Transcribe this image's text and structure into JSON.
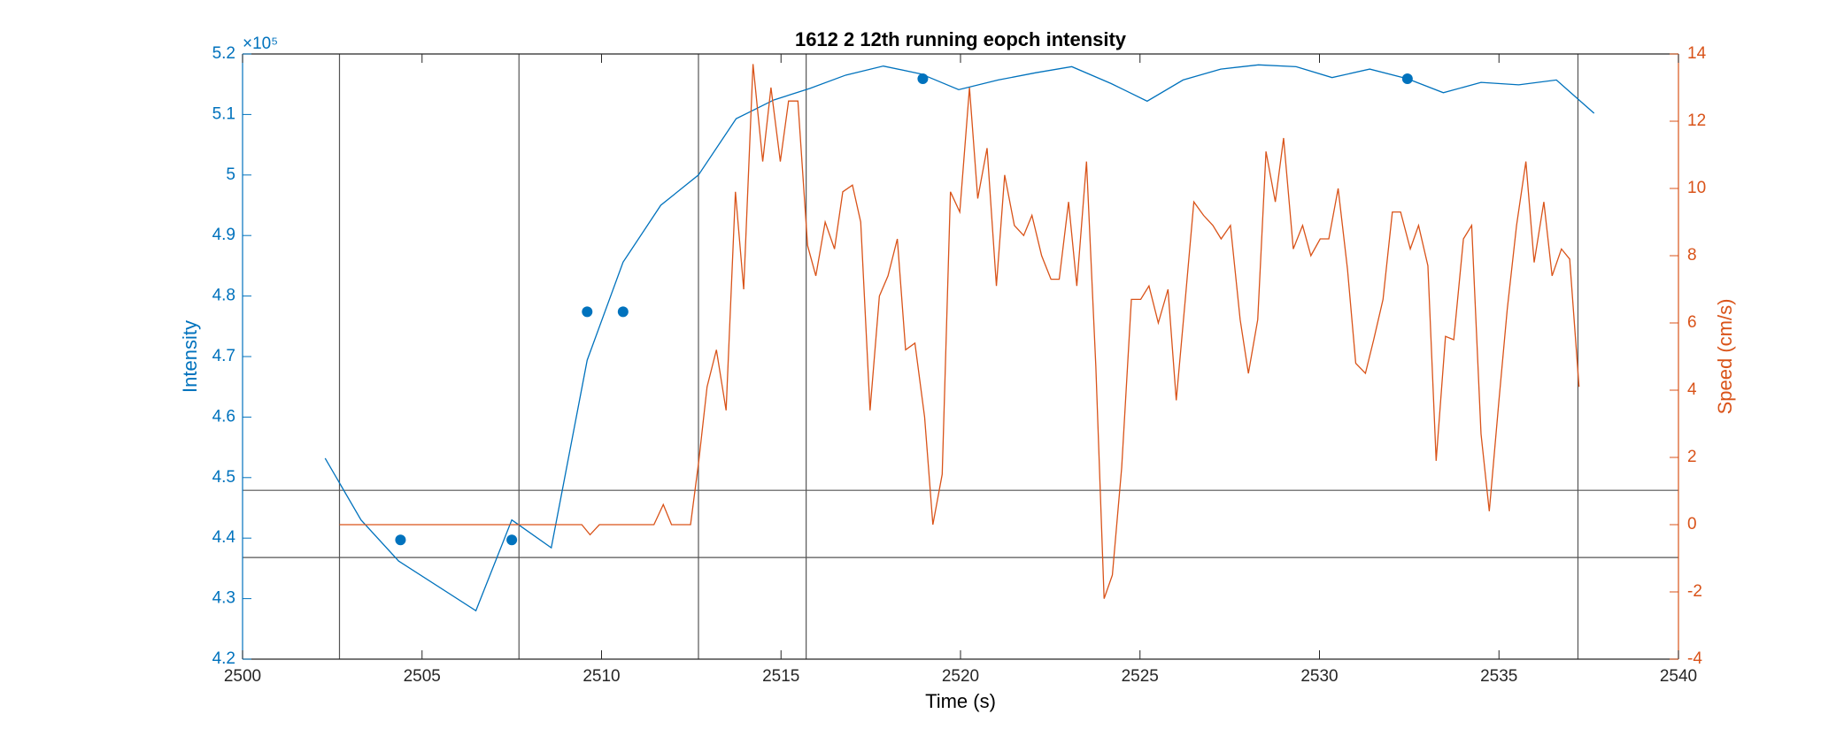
{
  "chart_data": {
    "type": "line",
    "title": "1612 2 12th running eopch intensity",
    "xlabel": "Time (s)",
    "ylabel": "Intensity",
    "y2label": "Speed (cm/s)",
    "y_multiplier": "×10⁵",
    "xlim": [
      2500,
      2540
    ],
    "xticks": [
      2500,
      2505,
      2510,
      2515,
      2520,
      2525,
      2530,
      2535,
      2540
    ],
    "ylim": [
      4.2,
      5.2
    ],
    "yticks": [
      4.2,
      4.3,
      4.4,
      4.5,
      4.6,
      4.7,
      4.8,
      4.9,
      5,
      5.1,
      5.2
    ],
    "y2lim": [
      -4,
      14
    ],
    "y2ticks": [
      -4,
      -2,
      0,
      2,
      4,
      6,
      8,
      10,
      12,
      14
    ],
    "y_color": "#0072BD",
    "y2_color": "#D95319",
    "vlines": [
      2502.7,
      2507.7,
      2512.7,
      2515.7,
      2537.2
    ],
    "hlines": [
      4.479,
      4.368
    ],
    "refline_color": "#555555",
    "series": [
      {
        "style": "line",
        "color": "#0072BD",
        "x": [
          2502.3,
          2503.3,
          2504.35,
          2506.5,
          2507.5,
          2508.6,
          2509.6,
          2510.6,
          2511.65,
          2512.7,
          2513.75,
          2514.8,
          2515.8,
          2516.8,
          2517.85,
          2518.9,
          2519.95,
          2521.05,
          2522.1,
          2523.1,
          2524.2,
          2525.2,
          2526.2,
          2527.25,
          2528.3,
          2529.35,
          2530.35,
          2531.4,
          2532.45,
          2533.45,
          2534.5,
          2535.55,
          2536.6,
          2537.65
        ],
        "values": [
          4.532,
          4.43,
          4.362,
          4.28,
          4.43,
          4.384,
          4.694,
          4.856,
          4.95,
          5.0,
          5.093,
          5.124,
          5.143,
          5.165,
          5.18,
          5.167,
          5.141,
          5.157,
          5.169,
          5.179,
          5.151,
          5.122,
          5.157,
          5.175,
          5.182,
          5.179,
          5.161,
          5.175,
          5.159,
          5.136,
          5.153,
          5.149,
          5.157,
          5.102
        ]
      },
      {
        "style": "markers",
        "color": "#0072BD",
        "x": [
          2504.4,
          2507.5,
          2509.6,
          2510.6,
          2518.95,
          2532.45
        ],
        "values": [
          4.397,
          4.397,
          4.774,
          4.774,
          5.159,
          5.159
        ]
      },
      {
        "style": "line",
        "color": "#D95319",
        "axis": "y2",
        "x": [
          2502.7,
          2509.45,
          2509.68,
          2509.94,
          2511.46,
          2511.72,
          2511.95,
          2512.48,
          2512.71,
          2512.94,
          2513.2,
          2513.47,
          2513.73,
          2513.96,
          2514.22,
          2514.49,
          2514.72,
          2514.98,
          2515.21,
          2515.47,
          2515.74,
          2515.97,
          2516.23,
          2516.49,
          2516.72,
          2516.99,
          2517.22,
          2517.48,
          2517.74,
          2517.98,
          2518.24,
          2518.47,
          2518.73,
          2519.0,
          2519.23,
          2519.49,
          2519.72,
          2519.98,
          2520.25,
          2520.48,
          2520.74,
          2521.0,
          2521.23,
          2521.5,
          2521.76,
          2521.99,
          2522.26,
          2522.52,
          2522.75,
          2523.01,
          2523.24,
          2523.51,
          2523.77,
          2524.0,
          2524.23,
          2524.49,
          2524.76,
          2525.02,
          2525.25,
          2525.51,
          2525.78,
          2526.01,
          2526.27,
          2526.5,
          2526.77,
          2527.03,
          2527.26,
          2527.52,
          2527.79,
          2528.02,
          2528.28,
          2528.51,
          2528.77,
          2529.0,
          2529.27,
          2529.53,
          2529.76,
          2530.02,
          2530.26,
          2530.52,
          2530.78,
          2531.01,
          2531.28,
          2531.51,
          2531.77,
          2532.03,
          2532.26,
          2532.53,
          2532.76,
          2533.02,
          2533.25,
          2533.51,
          2533.74,
          2534.01,
          2534.24,
          2534.5,
          2534.73,
          2535.0,
          2535.23,
          2535.49,
          2535.75,
          2535.98,
          2536.25,
          2536.48,
          2536.74,
          2536.97,
          2537.23
        ],
        "values": [
          0,
          0,
          -0.3,
          0,
          0,
          0.6,
          0,
          0,
          1.9,
          4.1,
          5.2,
          3.4,
          9.9,
          7.0,
          13.7,
          10.8,
          13.0,
          10.8,
          12.6,
          12.6,
          8.3,
          7.4,
          9.0,
          8.2,
          9.9,
          10.1,
          9.0,
          3.4,
          6.8,
          7.4,
          8.5,
          5.2,
          5.4,
          3.2,
          0.0,
          1.5,
          9.9,
          9.3,
          13.0,
          9.7,
          11.2,
          7.1,
          10.4,
          8.9,
          8.6,
          9.2,
          8.0,
          7.3,
          7.3,
          9.6,
          7.1,
          10.8,
          4.7,
          -2.2,
          -1.5,
          1.7,
          6.7,
          6.7,
          7.1,
          6.0,
          7.0,
          3.7,
          6.8,
          9.6,
          9.2,
          8.9,
          8.5,
          8.9,
          6.1,
          4.5,
          6.1,
          11.1,
          9.6,
          11.5,
          8.2,
          8.9,
          8.0,
          8.5,
          8.5,
          10.0,
          7.6,
          4.8,
          4.5,
          5.5,
          6.7,
          9.3,
          9.3,
          8.2,
          8.9,
          7.7,
          1.9,
          5.6,
          5.5,
          8.5,
          8.9,
          2.7,
          0.4,
          3.7,
          6.4,
          8.9,
          10.8,
          7.8,
          9.6,
          7.4,
          8.2,
          7.9,
          4.1
        ]
      }
    ]
  }
}
